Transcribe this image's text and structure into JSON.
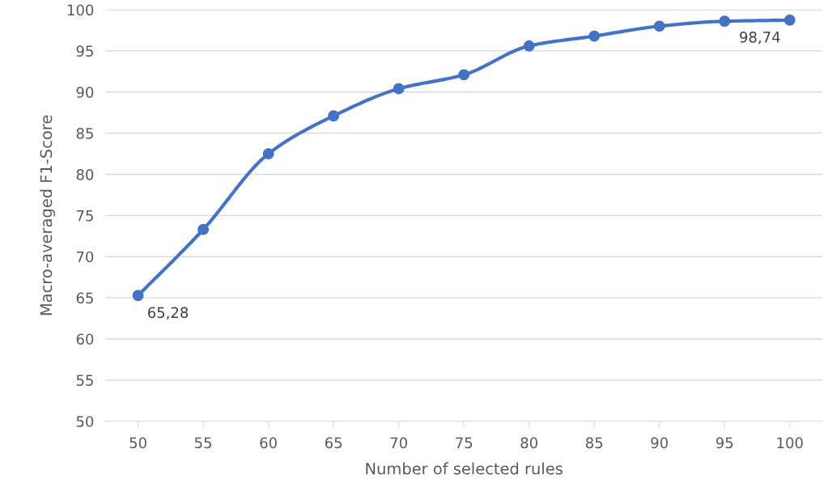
{
  "chart_data": {
    "type": "line",
    "xlabel": "Number of selected rules",
    "ylabel": "Macro-averaged F1-Score",
    "categories": [
      "50",
      "55",
      "60",
      "65",
      "70",
      "75",
      "80",
      "85",
      "90",
      "95",
      "100"
    ],
    "series": [
      {
        "color": "#4472c4",
        "values": [
          65.28,
          73.3,
          82.5,
          87.1,
          90.4,
          92.1,
          95.6,
          96.8,
          98.0,
          98.6,
          98.74
        ],
        "value_labels": [
          "65,28",
          null,
          null,
          null,
          null,
          null,
          null,
          null,
          null,
          null,
          "98,74"
        ]
      }
    ],
    "ylim": [
      50,
      100
    ],
    "yticks": [
      50,
      55,
      60,
      65,
      70,
      75,
      80,
      85,
      90,
      95,
      100
    ],
    "grid": "y",
    "marker": "circle",
    "line_style": "solid",
    "legend": false
  }
}
